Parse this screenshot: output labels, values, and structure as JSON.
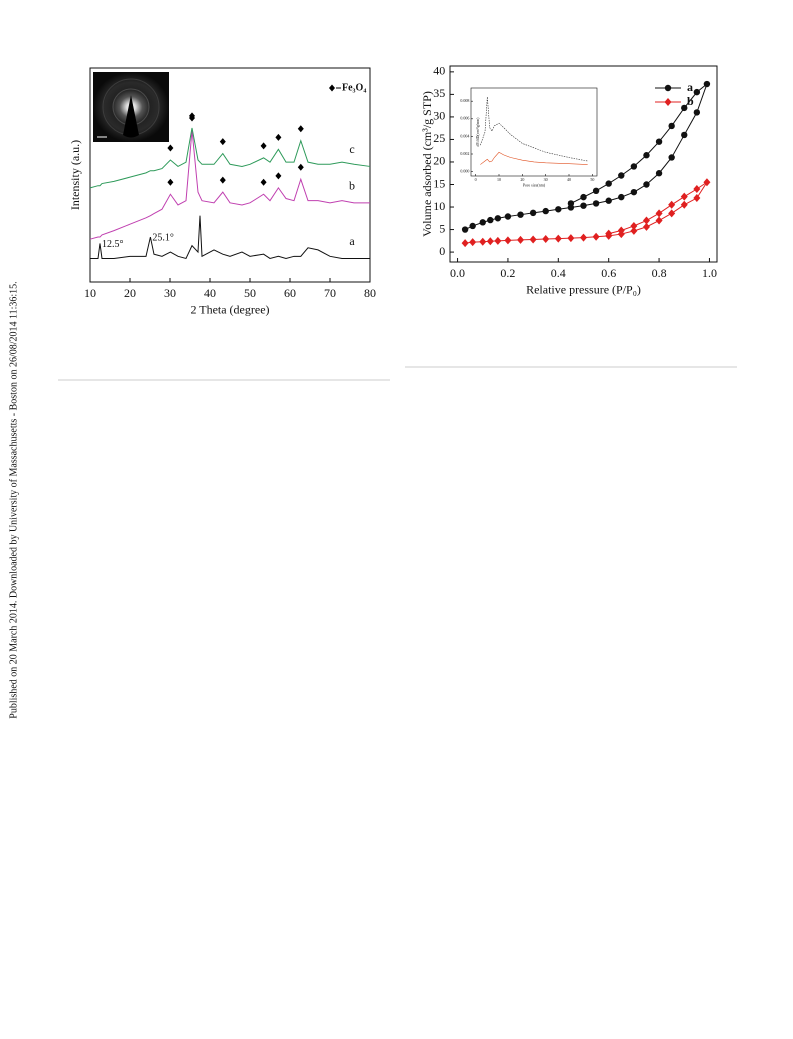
{
  "side_note": "Published on 20 March 2014. Downloaded by University of Massachusetts - Boston on 26/08/2014 11:36:15.",
  "chart_data": [
    {
      "type": "line",
      "x_label": "2 Theta (degree)",
      "y_label": "Intensity (a.u.)",
      "xlim": [
        10,
        80
      ],
      "xticks": [
        10,
        20,
        30,
        40,
        50,
        60,
        70,
        80
      ],
      "ylim": [
        0,
        100
      ],
      "x": [
        10,
        12,
        12.5,
        13,
        16,
        20,
        24,
        25.1,
        26,
        28,
        30.1,
        32,
        34,
        35.5,
        37,
        37.5,
        38,
        41,
        43.2,
        45,
        48,
        50,
        53.4,
        55,
        57.1,
        59,
        61,
        62.7,
        64.5,
        67,
        70,
        73,
        76,
        80
      ],
      "series": [
        {
          "name": "a",
          "color": "#111111",
          "values": [
            11,
            11,
            18,
            11,
            11,
            12,
            12,
            21,
            13,
            12,
            14,
            12,
            11,
            17,
            14,
            31,
            12,
            15,
            13,
            12,
            14,
            12,
            13,
            11,
            12,
            11,
            12,
            12,
            16,
            15,
            12,
            11,
            11,
            11
          ]
        },
        {
          "name": "b",
          "color": "#c040b0",
          "values": [
            20,
            21,
            21,
            22,
            24,
            27,
            30,
            31,
            32,
            34,
            41,
            36,
            38,
            71,
            42,
            40,
            38,
            37,
            42,
            37,
            36,
            37,
            41,
            38,
            44,
            39,
            38,
            48,
            38,
            38,
            37,
            38,
            37,
            37
          ]
        },
        {
          "name": "c",
          "color": "#2e9a5a",
          "values": [
            44,
            45,
            45,
            46,
            47,
            49,
            51,
            52,
            52,
            53,
            57,
            54,
            56,
            72,
            57,
            56,
            55,
            55,
            60,
            55,
            54,
            55,
            58,
            56,
            62,
            56,
            56,
            66,
            56,
            55,
            55,
            56,
            55,
            54
          ]
        }
      ],
      "annotations": [
        {
          "text": "12.5°",
          "x": 12.5
        },
        {
          "text": "25.1°",
          "x": 25.1
        }
      ],
      "peak_markers": {
        "name": "Fe₃O₄",
        "x": [
          30.1,
          35.5,
          43.2,
          53.4,
          57.1,
          62.7
        ]
      }
    },
    {
      "type": "line",
      "x_label": "Relative pressure (P/P₀)",
      "y_label": "Volume adsorbed (cm³/g STP)",
      "xlim": [
        -0.03,
        1.03
      ],
      "xticks": [
        {
          "value": 0,
          "label": "0.0"
        },
        0.2,
        0.4,
        0.6,
        0.8,
        {
          "value": 1,
          "label": "1.0"
        }
      ],
      "ylim": [
        -2.2,
        41.3
      ],
      "yticks": [
        0,
        5,
        10,
        15,
        20,
        25,
        30,
        35,
        40
      ],
      "legend": "upper right",
      "series": [
        {
          "name": "a",
          "color": "#111111",
          "marker": "circle",
          "x": [
            0.03,
            0.06,
            0.1,
            0.13,
            0.16,
            0.2,
            0.25,
            0.3,
            0.35,
            0.4,
            0.45,
            0.5,
            0.55,
            0.6,
            0.65,
            0.7,
            0.75,
            0.8,
            0.85,
            0.9,
            0.95,
            0.99,
            0.95,
            0.9,
            0.85,
            0.8,
            0.75,
            0.7,
            0.65,
            0.6,
            0.55,
            0.5,
            0.45
          ],
          "values": [
            5,
            5.8,
            6.6,
            7.1,
            7.5,
            7.9,
            8.3,
            8.7,
            9.1,
            9.5,
            9.9,
            10.3,
            10.8,
            11.4,
            12.2,
            13.3,
            15,
            17.5,
            21,
            26,
            31,
            37.3,
            35.5,
            32,
            28,
            24.5,
            21.5,
            19,
            17,
            15.2,
            13.6,
            12.2,
            10.8
          ]
        },
        {
          "name": "b",
          "color": "#e02020",
          "marker": "diamond",
          "x": [
            0.03,
            0.06,
            0.1,
            0.13,
            0.16,
            0.2,
            0.25,
            0.3,
            0.35,
            0.4,
            0.45,
            0.5,
            0.55,
            0.6,
            0.65,
            0.7,
            0.75,
            0.8,
            0.85,
            0.9,
            0.95,
            0.99,
            0.95,
            0.9,
            0.85,
            0.8,
            0.75,
            0.7,
            0.65,
            0.6
          ],
          "values": [
            2,
            2.2,
            2.3,
            2.4,
            2.5,
            2.6,
            2.7,
            2.8,
            2.9,
            3.0,
            3.1,
            3.2,
            3.4,
            3.6,
            4.0,
            4.7,
            5.6,
            7,
            8.6,
            10.5,
            12,
            15.5,
            14,
            12.3,
            10.5,
            8.6,
            7,
            5.8,
            4.8,
            4.1
          ]
        }
      ]
    },
    {
      "type": "line",
      "x_label": "Pore size(nm)",
      "y_label": "dV/dD(cm³/g/nm)",
      "xlim": [
        -2,
        52
      ],
      "xticks": [
        0,
        10,
        20,
        30,
        40,
        50
      ],
      "ylim": [
        -0.0005,
        0.0095
      ],
      "yticks": [
        {
          "value": 0,
          "label": "0.000"
        },
        0.002,
        0.004,
        0.006,
        0.008
      ],
      "x": [
        2,
        4,
        5,
        6,
        7,
        8,
        10,
        12,
        15,
        20,
        25,
        30,
        40,
        48
      ],
      "series": [
        {
          "name": "a",
          "color": "#333333",
          "values": [
            0.003,
            0.0045,
            0.0085,
            0.005,
            0.0046,
            0.0052,
            0.0055,
            0.005,
            0.0042,
            0.0032,
            0.0027,
            0.0022,
            0.0016,
            0.0012
          ]
        },
        {
          "name": "b",
          "color": "#e05020",
          "values": [
            0.0008,
            0.0012,
            0.0014,
            0.0011,
            0.0012,
            0.0016,
            0.0022,
            0.0019,
            0.0016,
            0.0013,
            0.0011,
            0.001,
            0.0009,
            0.0008
          ]
        }
      ]
    }
  ]
}
